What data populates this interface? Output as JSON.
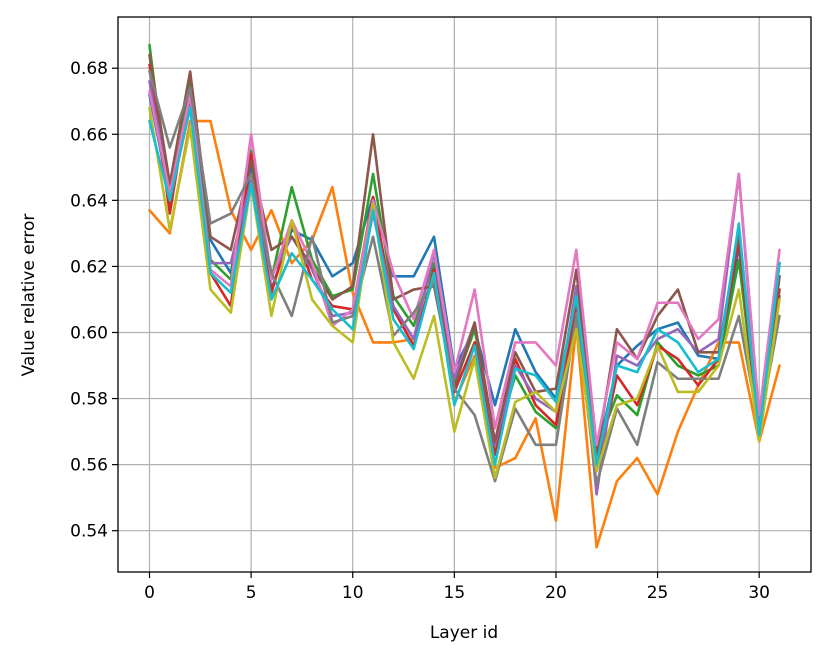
{
  "chart_data": {
    "type": "line",
    "title": "",
    "xlabel": "Layer id",
    "ylabel": "Value relative error",
    "xlim": [
      -1.55,
      32.55
    ],
    "ylim": [
      0.5275,
      0.6955
    ],
    "xticks": [
      0,
      5,
      10,
      15,
      20,
      25,
      30
    ],
    "yticks": [
      0.54,
      0.56,
      0.58,
      0.6,
      0.62,
      0.64,
      0.66,
      0.68
    ],
    "ytick_labels": [
      "0.54",
      "0.56",
      "0.58",
      "0.60",
      "0.62",
      "0.64",
      "0.66",
      "0.68"
    ],
    "xtick_labels": [
      "0",
      "5",
      "10",
      "15",
      "20",
      "25",
      "30"
    ],
    "grid": true,
    "x": [
      0,
      1,
      2,
      3,
      4,
      5,
      6,
      7,
      8,
      9,
      10,
      11,
      12,
      13,
      14,
      15,
      16,
      17,
      18,
      19,
      20,
      21,
      22,
      23,
      24,
      25,
      26,
      27,
      28,
      29,
      30,
      31
    ],
    "series": [
      {
        "color": "#1f77b4",
        "values": [
          0.672,
          0.641,
          0.67,
          0.628,
          0.618,
          0.65,
          0.613,
          0.631,
          0.628,
          0.617,
          0.621,
          0.641,
          0.617,
          0.617,
          0.629,
          0.589,
          0.601,
          0.578,
          0.601,
          0.588,
          0.58,
          0.611,
          0.562,
          0.59,
          0.596,
          0.601,
          0.603,
          0.593,
          0.592,
          0.626,
          0.574,
          0.621
        ]
      },
      {
        "color": "#ff7f0e",
        "values": [
          0.637,
          0.63,
          0.664,
          0.664,
          0.637,
          0.625,
          0.637,
          0.621,
          0.628,
          0.644,
          0.612,
          0.597,
          0.597,
          0.598,
          0.617,
          0.579,
          0.593,
          0.559,
          0.562,
          0.574,
          0.543,
          0.602,
          0.535,
          0.555,
          0.562,
          0.551,
          0.57,
          0.584,
          0.597,
          0.597,
          0.567,
          0.59
        ]
      },
      {
        "color": "#2ca02c",
        "values": [
          0.687,
          0.638,
          0.677,
          0.622,
          0.616,
          0.655,
          0.616,
          0.644,
          0.622,
          0.611,
          0.613,
          0.648,
          0.611,
          0.602,
          0.621,
          0.584,
          0.601,
          0.566,
          0.587,
          0.576,
          0.571,
          0.61,
          0.565,
          0.581,
          0.575,
          0.597,
          0.59,
          0.587,
          0.59,
          0.622,
          0.57,
          0.611
        ]
      },
      {
        "color": "#d62728",
        "values": [
          0.681,
          0.636,
          0.674,
          0.618,
          0.608,
          0.654,
          0.612,
          0.633,
          0.616,
          0.608,
          0.607,
          0.641,
          0.607,
          0.596,
          0.619,
          0.582,
          0.597,
          0.563,
          0.592,
          0.578,
          0.572,
          0.609,
          0.558,
          0.587,
          0.578,
          0.596,
          0.592,
          0.584,
          0.592,
          0.628,
          0.568,
          0.613
        ]
      },
      {
        "color": "#9467bd",
        "values": [
          0.676,
          0.643,
          0.672,
          0.621,
          0.621,
          0.646,
          0.617,
          0.629,
          0.619,
          0.605,
          0.606,
          0.636,
          0.608,
          0.598,
          0.624,
          0.586,
          0.603,
          0.566,
          0.59,
          0.58,
          0.576,
          0.614,
          0.551,
          0.593,
          0.59,
          0.598,
          0.601,
          0.594,
          0.598,
          0.648,
          0.571,
          0.617
        ]
      },
      {
        "color": "#8c564b",
        "values": [
          0.684,
          0.645,
          0.679,
          0.629,
          0.625,
          0.652,
          0.625,
          0.629,
          0.62,
          0.61,
          0.614,
          0.66,
          0.61,
          0.613,
          0.614,
          0.583,
          0.603,
          0.567,
          0.594,
          0.582,
          0.583,
          0.619,
          0.563,
          0.601,
          0.592,
          0.605,
          0.613,
          0.594,
          0.594,
          0.631,
          0.569,
          0.617
        ]
      },
      {
        "color": "#e377c2",
        "values": [
          0.673,
          0.642,
          0.672,
          0.619,
          0.614,
          0.66,
          0.616,
          0.634,
          0.621,
          0.602,
          0.607,
          0.64,
          0.618,
          0.604,
          0.625,
          0.588,
          0.613,
          0.571,
          0.597,
          0.597,
          0.59,
          0.625,
          0.566,
          0.597,
          0.592,
          0.609,
          0.609,
          0.598,
          0.604,
          0.648,
          0.575,
          0.625
        ]
      },
      {
        "color": "#7f7f7f",
        "values": [
          0.679,
          0.656,
          0.674,
          0.633,
          0.636,
          0.648,
          0.618,
          0.605,
          0.629,
          0.603,
          0.605,
          0.629,
          0.599,
          0.606,
          0.615,
          0.583,
          0.575,
          0.555,
          0.577,
          0.566,
          0.566,
          0.605,
          0.554,
          0.577,
          0.566,
          0.591,
          0.586,
          0.586,
          0.586,
          0.605,
          0.571,
          0.605
        ]
      },
      {
        "color": "#bcbd22",
        "values": [
          0.668,
          0.631,
          0.662,
          0.613,
          0.606,
          0.645,
          0.605,
          0.634,
          0.61,
          0.602,
          0.597,
          0.639,
          0.597,
          0.586,
          0.605,
          0.57,
          0.592,
          0.556,
          0.579,
          0.582,
          0.576,
          0.601,
          0.558,
          0.578,
          0.58,
          0.596,
          0.582,
          0.582,
          0.59,
          0.613,
          0.567,
          0.61
        ]
      },
      {
        "color": "#17becf",
        "values": [
          0.664,
          0.64,
          0.668,
          0.618,
          0.612,
          0.645,
          0.61,
          0.624,
          0.616,
          0.607,
          0.601,
          0.637,
          0.604,
          0.595,
          0.618,
          0.578,
          0.596,
          0.56,
          0.589,
          0.587,
          0.579,
          0.611,
          0.56,
          0.59,
          0.588,
          0.601,
          0.597,
          0.588,
          0.592,
          0.633,
          0.569,
          0.621
        ]
      }
    ]
  }
}
